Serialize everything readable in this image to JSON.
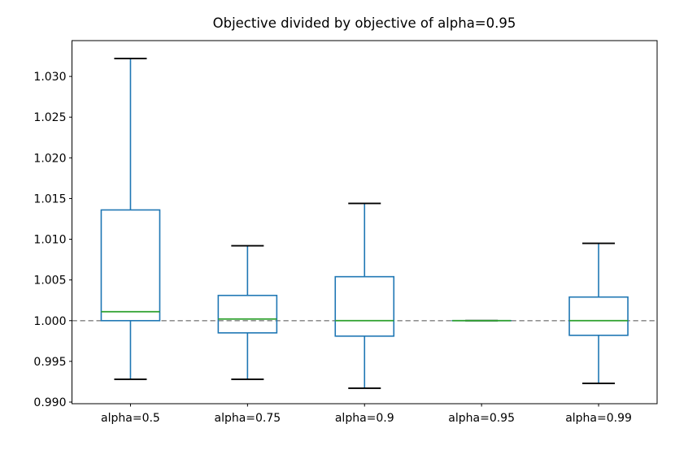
{
  "chart_data": {
    "type": "box",
    "title": "Objective divided by objective of alpha=0.95",
    "xlabel": "",
    "ylabel": "",
    "grid": false,
    "legend": null,
    "categories": [
      "alpha=0.5",
      "alpha=0.75",
      "alpha=0.9",
      "alpha=0.95",
      "alpha=0.99"
    ],
    "series": [
      {
        "name": "alpha=0.5",
        "whislo": 0.9928,
        "q1": 1.0,
        "med": 1.0011,
        "q3": 1.0136,
        "whishi": 1.0322
      },
      {
        "name": "alpha=0.75",
        "whislo": 0.9928,
        "q1": 0.9985,
        "med": 1.0002,
        "q3": 1.0031,
        "whishi": 1.0092
      },
      {
        "name": "alpha=0.9",
        "whislo": 0.9917,
        "q1": 0.9981,
        "med": 1.0,
        "q3": 1.0054,
        "whishi": 1.0144
      },
      {
        "name": "alpha=0.95",
        "whislo": 1.0,
        "q1": 1.0,
        "med": 1.0,
        "q3": 1.0,
        "whishi": 1.0
      },
      {
        "name": "alpha=0.99",
        "whislo": 0.9923,
        "q1": 0.9982,
        "med": 1.0,
        "q3": 1.0029,
        "whishi": 1.0095
      }
    ],
    "y_ticks": [
      0.99,
      0.995,
      1.0,
      1.005,
      1.01,
      1.015,
      1.02,
      1.025,
      1.03
    ],
    "y_tick_labels": [
      "0.990",
      "0.995",
      "1.000",
      "1.005",
      "1.010",
      "1.015",
      "1.020",
      "1.025",
      "1.030"
    ],
    "ylim": [
      0.9898,
      1.0344
    ],
    "reference_line": {
      "value": 1.0,
      "style": "dashed",
      "color": "#7f7f7f"
    },
    "colors": {
      "box": "#1f77b4",
      "whisker": "#1f77b4",
      "median": "#2ca02c",
      "cap": "#000000",
      "spine": "#000000",
      "text": "#000000",
      "background": "#ffffff"
    }
  }
}
